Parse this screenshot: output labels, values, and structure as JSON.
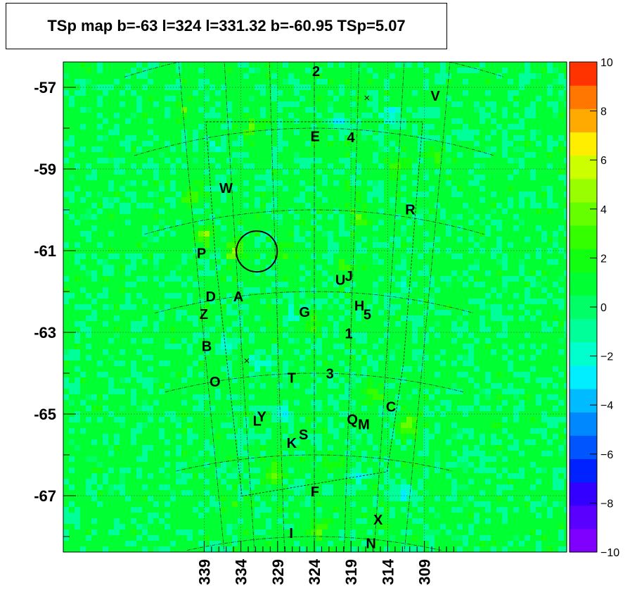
{
  "chart_data": {
    "type": "heatmap",
    "title": "TSp map b=-63 l=324 l=331.32 b=-60.95 TSp=5.07",
    "xlabel": "",
    "ylabel": "",
    "x_ticks": [
      "339",
      "334",
      "329",
      "324",
      "319",
      "314",
      "309"
    ],
    "y_ticks": [
      "-57",
      "-59",
      "-61",
      "-63",
      "-65",
      "-67"
    ],
    "xlim": [
      340,
      308.5
    ],
    "ylim": [
      -68.4,
      -56.5
    ],
    "colorbar": {
      "min": -10,
      "max": 10,
      "ticks": [
        "10",
        "8",
        "6",
        "4",
        "2",
        "0",
        "−2",
        "−4",
        "−6",
        "−8",
        "−10"
      ],
      "colors": [
        "#7f00ff",
        "#5a00ff",
        "#3300ff",
        "#0022ff",
        "#0055ff",
        "#0088ff",
        "#00bbff",
        "#00eeff",
        "#00ffcc",
        "#00ff99",
        "#00ff66",
        "#00ff33",
        "#11ff11",
        "#33ff00",
        "#66ff00",
        "#99ff00",
        "#ccff00",
        "#ffee00",
        "#ffaa00",
        "#ff7700",
        "#ff3300"
      ]
    },
    "sources": [
      {
        "label": "2",
        "l": 323.8,
        "b": -56.6
      },
      {
        "label": "V",
        "l": 310.3,
        "b": -56.9
      },
      {
        "label": "E",
        "l": 323.9,
        "b": -58.2
      },
      {
        "label": "4",
        "l": 319.7,
        "b": -58.2
      },
      {
        "label": "W",
        "l": 334.7,
        "b": -59.3
      },
      {
        "label": "R",
        "l": 312.2,
        "b": -59.8
      },
      {
        "label": "P",
        "l": 338.3,
        "b": -60.8
      },
      {
        "label": "U",
        "l": 320.6,
        "b": -61.7
      },
      {
        "label": "J",
        "l": 319.5,
        "b": -61.6
      },
      {
        "label": "D",
        "l": 337.6,
        "b": -61.9
      },
      {
        "label": "A",
        "l": 334.0,
        "b": -62.0
      },
      {
        "label": "Z",
        "l": 338.7,
        "b": -62.3
      },
      {
        "label": "H",
        "l": 318.0,
        "b": -62.3
      },
      {
        "label": "G",
        "l": 325.3,
        "b": -62.5
      },
      {
        "label": "5",
        "l": 316.9,
        "b": -62.5
      },
      {
        "label": "1",
        "l": 319.3,
        "b": -63.0
      },
      {
        "label": "B",
        "l": 338.7,
        "b": -63.1
      },
      {
        "label": "3",
        "l": 321.8,
        "b": -64.0
      },
      {
        "label": "O",
        "l": 338.0,
        "b": -64.0
      },
      {
        "label": "T",
        "l": 327.2,
        "b": -64.1
      },
      {
        "label": "C",
        "l": 312.9,
        "b": -64.7
      },
      {
        "label": "Y",
        "l": 331.7,
        "b": -65.0
      },
      {
        "label": "L",
        "l": 332.4,
        "b": -65.1
      },
      {
        "label": "Q",
        "l": 318.4,
        "b": -65.1
      },
      {
        "label": "M",
        "l": 316.7,
        "b": -65.2
      },
      {
        "label": "S",
        "l": 325.6,
        "b": -65.5
      },
      {
        "label": "K",
        "l": 327.4,
        "b": -65.7
      },
      {
        "label": "F",
        "l": 323.9,
        "b": -66.9
      },
      {
        "label": "X",
        "l": 313.7,
        "b": -67.5
      },
      {
        "label": "I",
        "l": 327.8,
        "b": -67.9
      },
      {
        "label": "N",
        "l": 314.6,
        "b": -68.1
      }
    ],
    "circle": {
      "l": 331.32,
      "b": -60.95
    },
    "crosses": [
      {
        "l": 318.0,
        "b": -57.2
      },
      {
        "l": 333.4,
        "b": -63.6
      }
    ],
    "hotspots": [
      {
        "l": 333.9,
        "b": -60.9,
        "v": 4.5
      },
      {
        "l": 337.7,
        "b": -60.4,
        "v": 3.5
      },
      {
        "l": 338.9,
        "b": -59.3,
        "v": 3
      },
      {
        "l": 310.2,
        "b": -65.1,
        "v": 3.5
      },
      {
        "l": 323.1,
        "b": -67.8,
        "v": 3.5
      },
      {
        "l": 315.2,
        "b": -64.5,
        "v": 2.8
      },
      {
        "l": 330.2,
        "b": -66.4,
        "v": 3
      },
      {
        "l": 318.4,
        "b": -60.1,
        "v": 2.5
      },
      {
        "l": 324.6,
        "b": -62.8,
        "v": 2.5
      },
      {
        "l": 331.3,
        "b": -57.9,
        "v": 2.5
      },
      {
        "l": 338.6,
        "b": -57.2,
        "v": 2.2
      },
      {
        "l": 320.2,
        "b": -61.4,
        "v": 2.3
      },
      {
        "l": 327.8,
        "b": -61.0,
        "v": 2
      },
      {
        "l": 309.8,
        "b": -58.4,
        "v": 2
      },
      {
        "l": 314.2,
        "b": -58.8,
        "v": 2
      },
      {
        "l": 320.7,
        "b": -66.2,
        "v": 2
      },
      {
        "l": 336.5,
        "b": -67.2,
        "v": 2.2
      }
    ],
    "coldspots": [
      {
        "l": 315.1,
        "b": -57.6,
        "v": -3
      },
      {
        "l": 328.6,
        "b": -65.0,
        "v": -2.8
      },
      {
        "l": 336.7,
        "b": -63.2,
        "v": -2.5
      },
      {
        "l": 309.7,
        "b": -66.8,
        "v": -2.5
      },
      {
        "l": 321.5,
        "b": -57.8,
        "v": -2.2
      },
      {
        "l": 327.1,
        "b": -62.5,
        "v": -2
      },
      {
        "l": 317.4,
        "b": -66.5,
        "v": -2
      },
      {
        "l": 335.8,
        "b": -58.3,
        "v": -2
      },
      {
        "l": 331.4,
        "b": -63.7,
        "v": -2
      },
      {
        "l": 312.5,
        "b": -61.6,
        "v": -1.8
      }
    ]
  }
}
